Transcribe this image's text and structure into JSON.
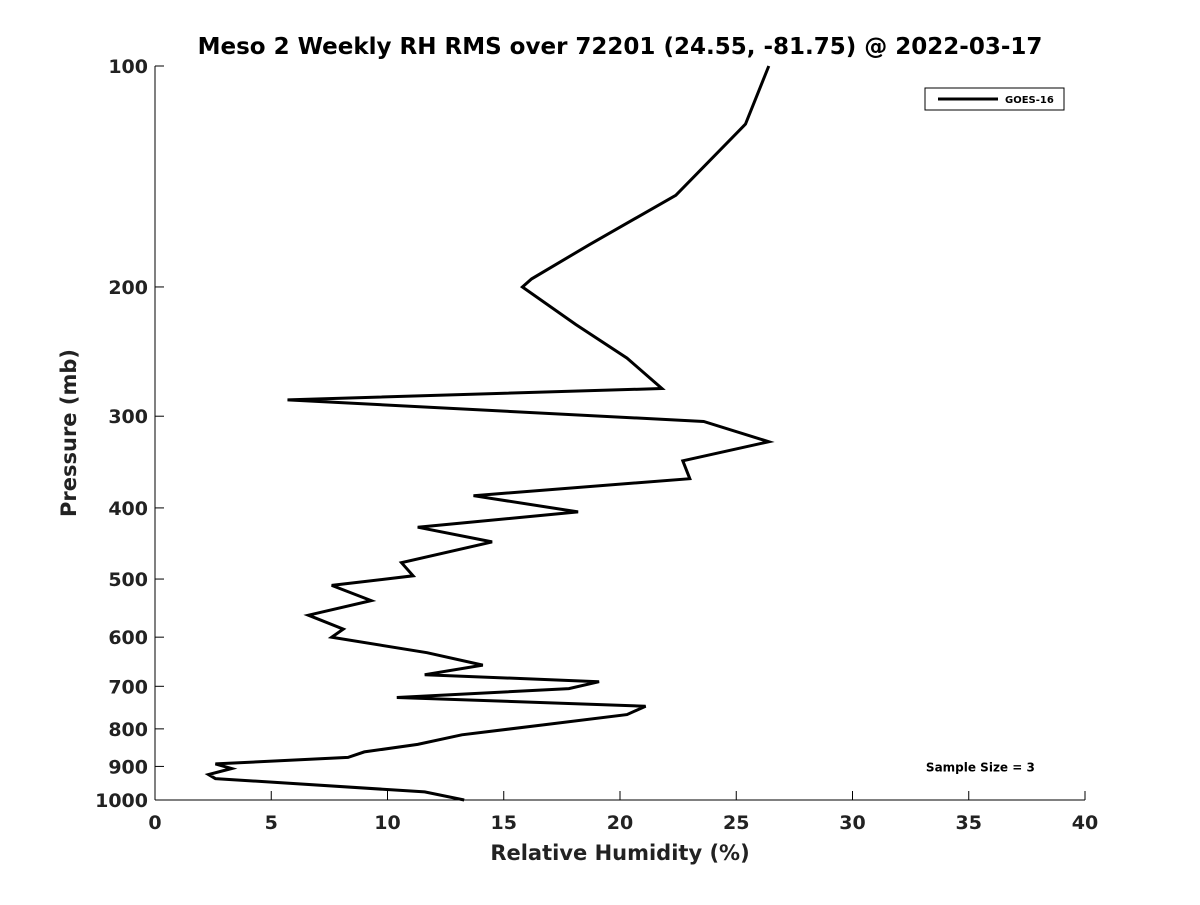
{
  "chart_data": {
    "type": "line",
    "title": "Meso 2 Weekly RH RMS over 72201 (24.55, -81.75) @ 2022-03-17",
    "xlabel": "Relative Humidity (%)",
    "ylabel": "Pressure (mb)",
    "xlim": [
      0,
      40
    ],
    "ylim": [
      100,
      1000
    ],
    "y_scale": "log",
    "y_reversed": true,
    "x_ticks": [
      0,
      5,
      10,
      15,
      20,
      25,
      30,
      35,
      40
    ],
    "y_ticks": [
      100,
      200,
      300,
      400,
      500,
      600,
      700,
      800,
      900,
      1000
    ],
    "grid": false,
    "legend_position": "top-right",
    "series": [
      {
        "name": "GOES-16",
        "color": "#000000",
        "x": [
          26.4,
          25.4,
          22.4,
          18.7,
          16.2,
          15.8,
          18.1,
          20.3,
          21.8,
          5.7,
          23.6,
          26.4,
          22.7,
          23.0,
          13.7,
          18.2,
          11.3,
          14.5,
          10.6,
          11.1,
          7.6,
          9.3,
          6.6,
          8.1,
          7.6,
          11.7,
          14.1,
          11.6,
          19.1,
          17.8,
          10.4,
          21.1,
          20.3,
          16.7,
          13.2,
          11.3,
          9.0,
          8.3,
          2.6,
          3.3,
          2.3,
          2.6,
          11.6,
          13.3
        ],
        "y": [
          100,
          120,
          150,
          175,
          195,
          200,
          225,
          250,
          275,
          285,
          305,
          325,
          345,
          365,
          385,
          405,
          425,
          445,
          475,
          495,
          510,
          535,
          560,
          585,
          600,
          630,
          655,
          675,
          690,
          705,
          725,
          745,
          765,
          790,
          815,
          840,
          860,
          875,
          893,
          906,
          923,
          935,
          975,
          1000
        ]
      }
    ],
    "annotations": [
      {
        "text": "Sample Size = 3",
        "x": 35.5,
        "y": 900
      }
    ]
  }
}
